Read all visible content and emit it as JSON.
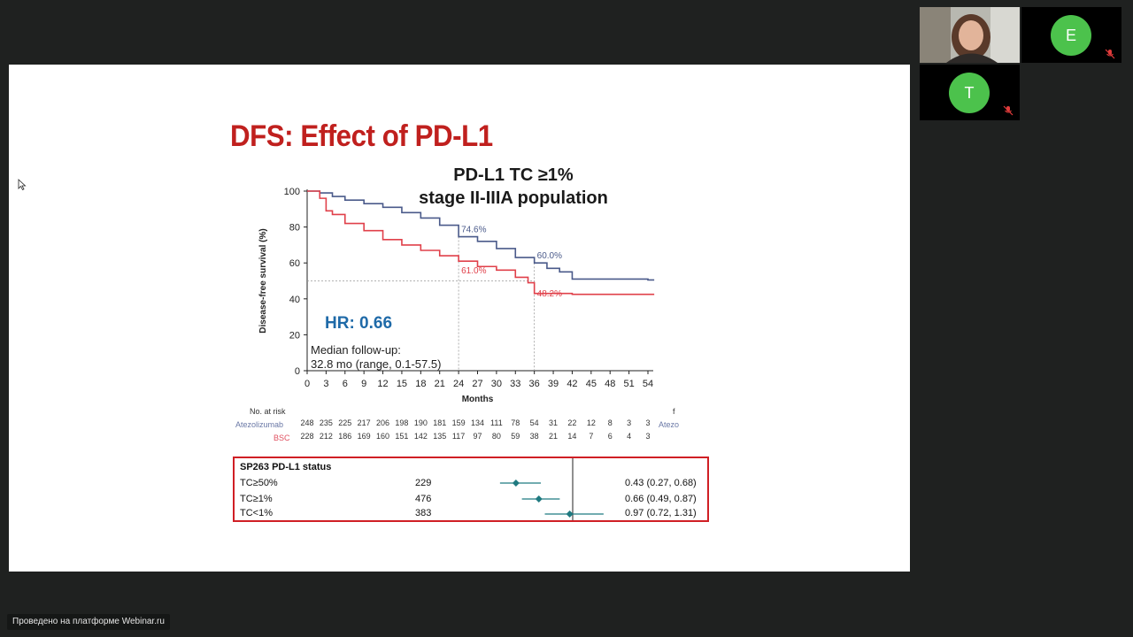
{
  "slide": {
    "title": "DFS: Effect of PD-L1",
    "chart_title_line1": "PD-L1 TC ≥1%",
    "chart_title_line2": "stage II-IIIA population",
    "hr_label": "HR: 0.66",
    "followup_line1": "Median follow-up:",
    "followup_line2": "32.8 mo (range, 0.1-57.5)",
    "annotations": {
      "atezo_24": "74.6%",
      "atezo_36": "60.0%",
      "bsc_24": "61.0%",
      "bsc_36": "48.2%"
    },
    "colors": {
      "title": "#c0201e",
      "atezo": "#4a5a8a",
      "bsc": "#e0404a",
      "hr": "#1f6aa8",
      "forest_marker": "#1f7a80",
      "box_border": "#d01f25"
    }
  },
  "chart_data": {
    "type": "line",
    "xlabel": "Months",
    "ylabel": "Disease-free survival (%)",
    "xlim": [
      0,
      54
    ],
    "ylim": [
      0,
      100
    ],
    "x_ticks": [
      0,
      3,
      6,
      9,
      12,
      15,
      18,
      21,
      24,
      27,
      30,
      33,
      36,
      39,
      42,
      45,
      48,
      51,
      54
    ],
    "y_ticks": [
      0,
      20,
      40,
      60,
      80,
      100
    ],
    "series": [
      {
        "name": "Atezolizumab",
        "color": "#4a5a8a",
        "points": [
          [
            0,
            100
          ],
          [
            2,
            99
          ],
          [
            4,
            97
          ],
          [
            6,
            95
          ],
          [
            9,
            93
          ],
          [
            12,
            91
          ],
          [
            15,
            88
          ],
          [
            18,
            85
          ],
          [
            21,
            81
          ],
          [
            24,
            76
          ],
          [
            24,
            74.6
          ],
          [
            27,
            72
          ],
          [
            30,
            68
          ],
          [
            33,
            63
          ],
          [
            36,
            60
          ],
          [
            38,
            57
          ],
          [
            40,
            55
          ],
          [
            42,
            55
          ],
          [
            42,
            51
          ],
          [
            45,
            51
          ],
          [
            48,
            51
          ],
          [
            51,
            51
          ],
          [
            54,
            50.5
          ],
          [
            55,
            50.5
          ]
        ]
      },
      {
        "name": "BSC",
        "color": "#e0404a",
        "points": [
          [
            0,
            100
          ],
          [
            2,
            96
          ],
          [
            3,
            89
          ],
          [
            4,
            87
          ],
          [
            6,
            82
          ],
          [
            9,
            78
          ],
          [
            12,
            73
          ],
          [
            15,
            70
          ],
          [
            18,
            67
          ],
          [
            21,
            64
          ],
          [
            24,
            61
          ],
          [
            27,
            58
          ],
          [
            30,
            56
          ],
          [
            33,
            52
          ],
          [
            35,
            49
          ],
          [
            36,
            48.2
          ],
          [
            36,
            43
          ],
          [
            39,
            43
          ],
          [
            42,
            42.5
          ],
          [
            45,
            42.5
          ],
          [
            48,
            42.5
          ],
          [
            51,
            42.5
          ],
          [
            54,
            42.5
          ],
          [
            55,
            42.5
          ]
        ]
      }
    ],
    "reference_line_y": 50,
    "annotations": [
      {
        "x": 24,
        "y": 74.6,
        "text": "74.6%",
        "series": "Atezolizumab"
      },
      {
        "x": 36,
        "y": 60.0,
        "text": "60.0%",
        "series": "Atezolizumab"
      },
      {
        "x": 24,
        "y": 61.0,
        "text": "61.0%",
        "series": "BSC"
      },
      {
        "x": 36,
        "y": 48.2,
        "text": "48.2%",
        "series": "BSC"
      }
    ],
    "hazard_ratio": "HR: 0.66"
  },
  "risk_table": {
    "header": "No. at risk",
    "rows": [
      {
        "label": "Atezolizumab",
        "values": [
          "248",
          "235",
          "225",
          "217",
          "206",
          "198",
          "190",
          "181",
          "159",
          "134",
          "111",
          "78",
          "54",
          "31",
          "22",
          "12",
          "8",
          "3",
          "3"
        ],
        "trailing": "Atezo"
      },
      {
        "label": "BSC",
        "values": [
          "228",
          "212",
          "186",
          "169",
          "160",
          "151",
          "142",
          "135",
          "117",
          "97",
          "80",
          "59",
          "38",
          "21",
          "14",
          "7",
          "6",
          "4",
          "3"
        ],
        "trailing": ""
      }
    ],
    "trailing_header": "f"
  },
  "forest": {
    "header": "SP263 PD-L1 status",
    "rows": [
      {
        "label": "TC≥50%",
        "n": "229",
        "ci_text": "0.43 (0.27, 0.68)",
        "hr": 0.43,
        "lo": 0.27,
        "hi": 0.68
      },
      {
        "label": "TC≥1%",
        "n": "476",
        "ci_text": "0.66 (0.49, 0.87)",
        "hr": 0.66,
        "lo": 0.49,
        "hi": 0.87
      },
      {
        "label": "TC<1%",
        "n": "383",
        "ci_text": "0.97 (0.72, 1.31)",
        "hr": 0.97,
        "lo": 0.72,
        "hi": 1.31
      }
    ]
  },
  "participants": [
    {
      "name": "presenter",
      "type": "video",
      "muted": false
    },
    {
      "initial": "E",
      "muted": true,
      "color": "#4cc24c"
    },
    {
      "initial": "T",
      "muted": true,
      "color": "#4cc24c"
    }
  ],
  "footer": {
    "text": "Проведено на платформе Webinar.ru"
  }
}
